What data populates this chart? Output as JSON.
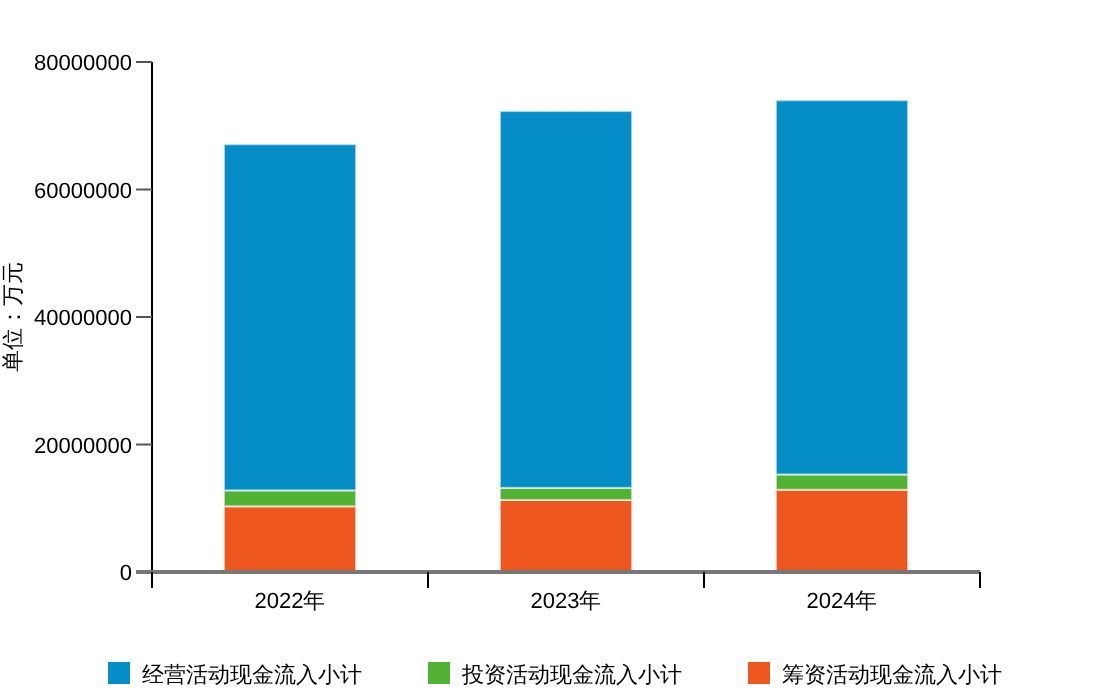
{
  "chart_data": {
    "type": "bar",
    "stacked": true,
    "ylabel": "单位：万元",
    "categories": [
      "2022年",
      "2023年",
      "2024年"
    ],
    "series": [
      {
        "name": "筹资活动现金流入小计",
        "color": "#ee581f",
        "values": [
          10300000,
          11300000,
          12900000
        ]
      },
      {
        "name": "投资活动现金流入小计",
        "color": "#52b233",
        "values": [
          2500000,
          1900000,
          2400000
        ]
      },
      {
        "name": "经营活动现金流入小计",
        "color": "#058dc7",
        "values": [
          54300000,
          59100000,
          58700000
        ]
      }
    ],
    "ylim": [
      0,
      80000000
    ],
    "yticks": [
      0,
      20000000,
      40000000,
      60000000,
      80000000
    ],
    "grid": false,
    "legend": "bottom"
  }
}
